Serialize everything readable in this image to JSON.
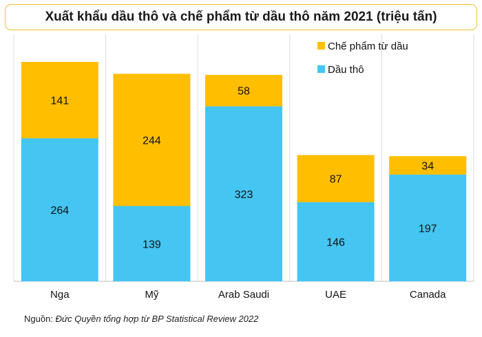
{
  "chart_data": {
    "type": "bar",
    "stacked": true,
    "title": "Xuất khẩu dầu thô và chế phẩm từ dầu thô năm 2021 (triệu tấn)",
    "categories": [
      "Nga",
      "Mỹ",
      "Arab Saudi",
      "UAE",
      "Canada"
    ],
    "series": [
      {
        "name": "Dầu thô",
        "values": [
          264,
          139,
          323,
          146,
          197
        ],
        "color": "#45C5F2"
      },
      {
        "name": "Chế phẩm từ dầu",
        "values": [
          141,
          244,
          58,
          87,
          34
        ],
        "color": "#FFBE00"
      }
    ],
    "ylim": [
      0,
      405
    ],
    "grid": false,
    "legend_position": "top-right"
  },
  "source": {
    "prefix": "Nguồn:",
    "text": "Đức Quyền tổng hợp từ BP Statistical Review 2022"
  }
}
